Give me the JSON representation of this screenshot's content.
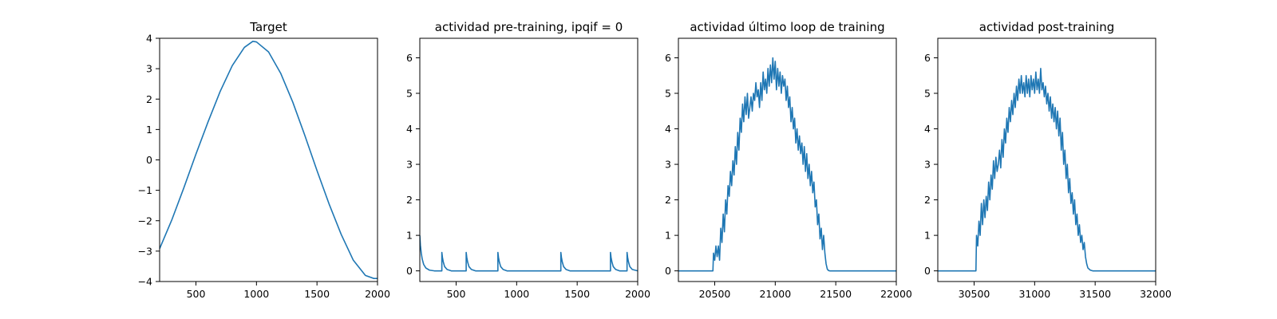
{
  "chart_data": [
    {
      "type": "line",
      "title": "Target",
      "xlim": [
        200,
        2000
      ],
      "ylim": [
        -4,
        4
      ],
      "xticks": [
        500,
        1000,
        1500,
        2000
      ],
      "yticks": [
        -4,
        -3,
        -2,
        -1,
        0,
        1,
        2,
        3,
        4
      ],
      "xtick_labels": [
        "500",
        "1000",
        "1500",
        "2000"
      ],
      "ytick_labels": [
        "−4",
        "−3",
        "−2",
        "−1",
        "0",
        "1",
        "2",
        "3",
        "4"
      ],
      "grid": false,
      "series": [
        {
          "color": "#1f77b4",
          "x": [
            200,
            300,
            400,
            500,
            600,
            700,
            800,
            900,
            970,
            1000,
            1100,
            1200,
            1300,
            1400,
            1500,
            1600,
            1700,
            1800,
            1900,
            1970,
            2000
          ],
          "y": [
            -2.92,
            -1.98,
            -0.92,
            0.19,
            1.25,
            2.25,
            3.1,
            3.7,
            3.9,
            3.88,
            3.55,
            2.85,
            1.9,
            0.8,
            -0.35,
            -1.45,
            -2.45,
            -3.3,
            -3.8,
            -3.9,
            -3.9
          ]
        }
      ]
    },
    {
      "type": "line",
      "title": "actividad pre-training, ipqif = 0",
      "xlim": [
        200,
        2000
      ],
      "ylim": [
        -0.3,
        6.55
      ],
      "xticks": [
        500,
        1000,
        1500,
        2000
      ],
      "yticks": [
        0,
        1,
        2,
        3,
        4,
        5,
        6
      ],
      "xtick_labels": [
        "500",
        "1000",
        "1500",
        "2000"
      ],
      "ytick_labels": [
        "0",
        "1",
        "2",
        "3",
        "4",
        "5",
        "6"
      ],
      "grid": false,
      "series": [
        {
          "color": "#1f77b4",
          "x": [
            200,
            205,
            212,
            220,
            232,
            250,
            280,
            320,
            382,
            382,
            387,
            394,
            405,
            425,
            460,
            583,
            583,
            588,
            595,
            606,
            626,
            660,
            845,
            845,
            850,
            857,
            868,
            888,
            920,
            1365,
            1365,
            1370,
            1377,
            1388,
            1408,
            1440,
            1775,
            1775,
            1780,
            1787,
            1798,
            1818,
            1850,
            1912,
            1912,
            1917,
            1924,
            1935,
            1955,
            2000
          ],
          "y": [
            1.0,
            0.72,
            0.5,
            0.33,
            0.18,
            0.08,
            0.02,
            0.0,
            0.0,
            0.52,
            0.38,
            0.25,
            0.12,
            0.04,
            0.0,
            0.0,
            0.52,
            0.38,
            0.25,
            0.12,
            0.04,
            0.0,
            0.0,
            0.52,
            0.38,
            0.25,
            0.12,
            0.04,
            0.0,
            0.0,
            0.52,
            0.38,
            0.25,
            0.12,
            0.04,
            0.0,
            0.0,
            0.52,
            0.38,
            0.25,
            0.12,
            0.04,
            0.0,
            0.0,
            0.52,
            0.38,
            0.25,
            0.12,
            0.04,
            0.0
          ]
        }
      ]
    },
    {
      "type": "line",
      "title": "actividad último loop de training",
      "xlim": [
        20200,
        22000
      ],
      "ylim": [
        -0.3,
        6.55
      ],
      "xticks": [
        20500,
        21000,
        21500,
        22000
      ],
      "yticks": [
        0,
        1,
        2,
        3,
        4,
        5,
        6
      ],
      "xtick_labels": [
        "20500",
        "21000",
        "21500",
        "22000"
      ],
      "ytick_labels": [
        "0",
        "1",
        "2",
        "3",
        "4",
        "5",
        "6"
      ],
      "grid": false,
      "series": [
        {
          "color": "#1f77b4",
          "x": [
            20200,
            20485,
            20490,
            20500,
            20510,
            20520,
            20530,
            20540,
            20550,
            20560,
            20570,
            20580,
            20590,
            20600,
            20610,
            20620,
            20630,
            20640,
            20650,
            20660,
            20670,
            20680,
            20690,
            20700,
            20710,
            20720,
            20730,
            20740,
            20750,
            20760,
            20770,
            20780,
            20790,
            20800,
            20810,
            20820,
            20830,
            20840,
            20850,
            20860,
            20870,
            20880,
            20890,
            20900,
            20910,
            20920,
            20930,
            20940,
            20950,
            20960,
            20970,
            20980,
            20990,
            21000,
            21010,
            21020,
            21030,
            21040,
            21050,
            21060,
            21070,
            21080,
            21090,
            21100,
            21110,
            21120,
            21130,
            21140,
            21150,
            21160,
            21170,
            21180,
            21190,
            21200,
            21210,
            21220,
            21230,
            21240,
            21250,
            21260,
            21270,
            21280,
            21290,
            21300,
            21310,
            21320,
            21330,
            21340,
            21350,
            21360,
            21370,
            21380,
            21390,
            21400,
            21410,
            21420,
            21430,
            21440,
            21450,
            21460,
            21470,
            21480,
            21500,
            21600,
            22000
          ],
          "y": [
            0,
            0,
            0.5,
            0.3,
            0.7,
            0.4,
            0.7,
            0.3,
            1.2,
            0.8,
            1.6,
            1.1,
            2.0,
            1.6,
            2.4,
            2.1,
            2.8,
            2.4,
            3.1,
            2.7,
            3.5,
            3.0,
            3.9,
            3.4,
            4.3,
            3.9,
            4.7,
            4.2,
            4.9,
            4.4,
            5.0,
            4.3,
            4.6,
            4.9,
            4.5,
            5.0,
            4.8,
            5.3,
            4.9,
            5.1,
            4.6,
            5.3,
            4.8,
            5.6,
            5.1,
            5.4,
            5.0,
            5.7,
            5.2,
            5.8,
            5.3,
            6.0,
            5.4,
            5.9,
            5.1,
            5.7,
            5.2,
            5.6,
            5.0,
            5.5,
            5.2,
            5.4,
            4.8,
            5.2,
            4.6,
            4.9,
            4.2,
            4.6,
            4.0,
            4.3,
            3.6,
            4.0,
            3.4,
            3.8,
            3.3,
            3.6,
            3.0,
            3.5,
            2.8,
            3.3,
            2.6,
            3.0,
            2.4,
            2.8,
            2.2,
            2.5,
            1.8,
            2.0,
            1.3,
            1.6,
            0.9,
            1.2,
            0.6,
            1.0,
            0.5,
            0.2,
            0.05,
            0.01,
            0,
            0,
            0,
            0,
            0,
            0,
            0
          ]
        }
      ]
    },
    {
      "type": "line",
      "title": "actividad post-training",
      "xlim": [
        30200,
        32000
      ],
      "ylim": [
        -0.3,
        6.55
      ],
      "xticks": [
        30500,
        31000,
        31500,
        32000
      ],
      "yticks": [
        0,
        1,
        2,
        3,
        4,
        5,
        6
      ],
      "xtick_labels": [
        "30500",
        "31000",
        "31500",
        "32000"
      ],
      "ytick_labels": [
        "0",
        "1",
        "2",
        "3",
        "4",
        "5",
        "6"
      ],
      "grid": false,
      "series": [
        {
          "color": "#1f77b4",
          "x": [
            30200,
            30515,
            30520,
            30530,
            30540,
            30550,
            30560,
            30570,
            30580,
            30590,
            30600,
            30610,
            30620,
            30630,
            30640,
            30650,
            30660,
            30670,
            30680,
            30690,
            30700,
            30710,
            30720,
            30730,
            30740,
            30750,
            30760,
            30770,
            30780,
            30790,
            30800,
            30810,
            30820,
            30830,
            30840,
            30850,
            30860,
            30870,
            30880,
            30890,
            30900,
            30910,
            30920,
            30930,
            30940,
            30950,
            30960,
            30970,
            30980,
            30990,
            31000,
            31010,
            31020,
            31030,
            31040,
            31050,
            31060,
            31070,
            31080,
            31090,
            31100,
            31110,
            31120,
            31130,
            31140,
            31150,
            31160,
            31170,
            31180,
            31190,
            31200,
            31210,
            31220,
            31230,
            31240,
            31250,
            31260,
            31270,
            31280,
            31290,
            31300,
            31310,
            31320,
            31330,
            31340,
            31350,
            31360,
            31370,
            31380,
            31390,
            31400,
            31410,
            31420,
            31430,
            31440,
            31460,
            31480,
            31500,
            31600,
            32000
          ],
          "y": [
            0,
            0,
            1.0,
            0.7,
            1.4,
            1.0,
            1.9,
            1.3,
            2.0,
            1.5,
            2.1,
            1.7,
            2.5,
            2.0,
            2.7,
            2.3,
            3.1,
            2.6,
            3.2,
            2.8,
            3.0,
            3.4,
            2.9,
            3.7,
            3.2,
            4.0,
            3.6,
            4.3,
            3.9,
            4.6,
            4.2,
            4.8,
            4.4,
            5.0,
            4.6,
            5.2,
            4.8,
            5.4,
            5.0,
            5.5,
            5.0,
            5.3,
            4.9,
            5.5,
            5.0,
            5.4,
            4.9,
            5.5,
            5.1,
            5.4,
            5.0,
            5.6,
            5.1,
            5.4,
            5.0,
            5.7,
            5.1,
            5.3,
            4.9,
            5.2,
            4.7,
            5.0,
            4.5,
            4.9,
            4.3,
            4.7,
            4.2,
            4.6,
            4.0,
            4.5,
            3.8,
            4.3,
            3.4,
            3.9,
            3.0,
            3.4,
            2.6,
            3.0,
            2.2,
            2.6,
            1.9,
            2.2,
            1.6,
            2.0,
            1.3,
            1.6,
            1.0,
            1.3,
            0.8,
            1.0,
            0.6,
            0.8,
            0.4,
            0.2,
            0.08,
            0.02,
            0,
            0,
            0,
            0
          ]
        }
      ]
    }
  ]
}
